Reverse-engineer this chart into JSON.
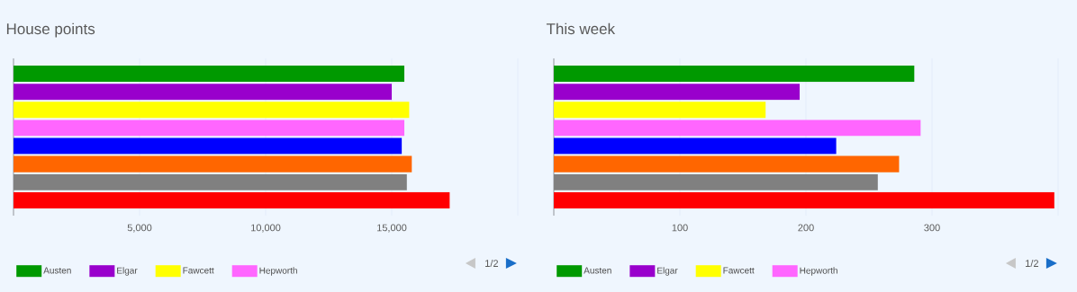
{
  "chart_data": [
    {
      "type": "bar",
      "orientation": "horizontal",
      "title": "House points",
      "categories": [
        null
      ],
      "tick_labels": "x",
      "grid": "x",
      "legend": "bottom",
      "xlim": [
        0,
        20000
      ],
      "xticks": [
        {
          "value": 5000,
          "label": "5,000"
        },
        {
          "value": 10000,
          "label": "10,000"
        },
        {
          "value": 15000,
          "label": "15,000"
        },
        {
          "value": 20000,
          "label": null
        }
      ],
      "series": [
        {
          "name": "Austen",
          "color": "#009900",
          "values": [
            15500
          ]
        },
        {
          "name": "Elgar",
          "color": "#9900cc",
          "values": [
            15000
          ]
        },
        {
          "name": "Fawcett",
          "color": "#ffff00",
          "values": [
            15700
          ]
        },
        {
          "name": "Hepworth",
          "color": "#ff66ff",
          "values": [
            15500
          ]
        },
        {
          "color": "#0000ff",
          "values": [
            15400
          ]
        },
        {
          "color": "#ff6600",
          "values": [
            15800
          ]
        },
        {
          "color": "#808080",
          "values": [
            15600
          ]
        },
        {
          "color": "#ff0000",
          "values": [
            17300
          ]
        }
      ],
      "annotations": [
        "1/2"
      ]
    },
    {
      "type": "bar",
      "orientation": "horizontal",
      "title": "This week",
      "categories": [
        null
      ],
      "tick_labels": "x",
      "grid": "x",
      "legend": "bottom",
      "xlim": [
        0,
        400
      ],
      "xticks": [
        100,
        200,
        300,
        {
          "value": 400,
          "label": null
        }
      ],
      "series": [
        {
          "name": "Austen",
          "color": "#009900",
          "values": [
            286
          ]
        },
        {
          "name": "Elgar",
          "color": "#9900cc",
          "values": [
            195
          ]
        },
        {
          "name": "Fawcett",
          "color": "#ffff00",
          "values": [
            168
          ]
        },
        {
          "name": "Hepworth",
          "color": "#ff66ff",
          "values": [
            291
          ]
        },
        {
          "color": "#0000ff",
          "values": [
            224
          ]
        },
        {
          "color": "#ff6600",
          "values": [
            274
          ]
        },
        {
          "color": "#808080",
          "values": [
            257
          ]
        },
        {
          "color": "#ff0000",
          "values": [
            397
          ]
        }
      ],
      "annotations": [
        "1/2"
      ]
    }
  ]
}
